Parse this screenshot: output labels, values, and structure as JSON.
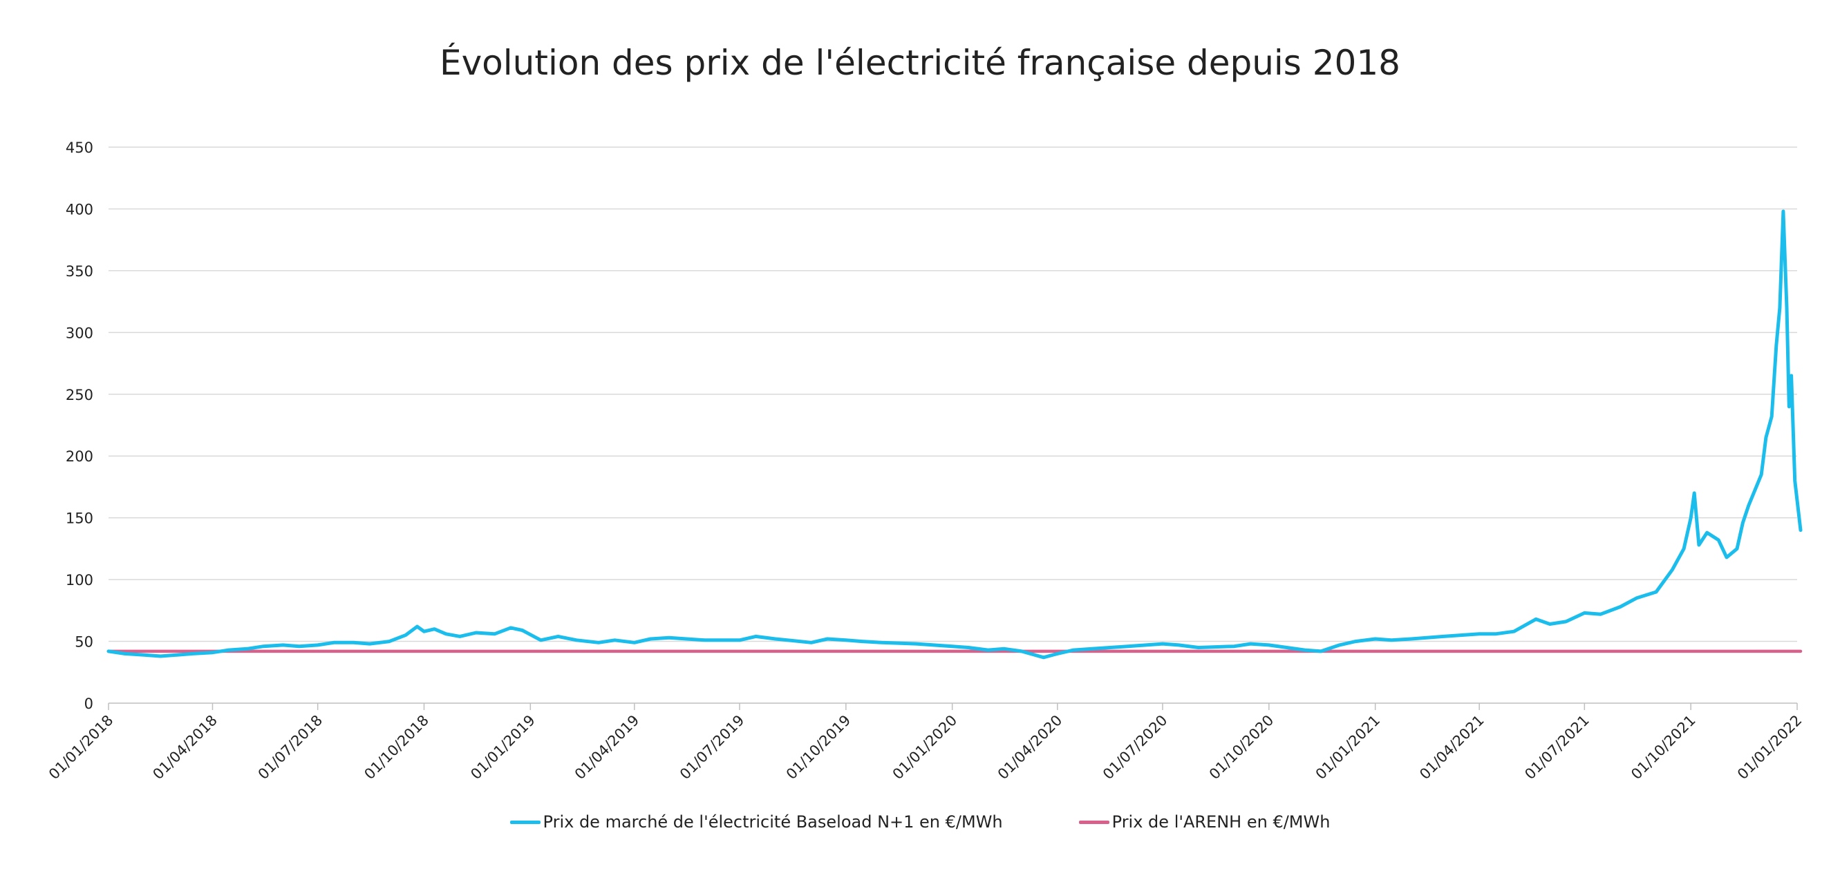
{
  "chart_data": {
    "type": "line",
    "title": "Évolution des prix de l'électricité française depuis 2018",
    "xlabel": "",
    "ylabel": "",
    "ylim": [
      0,
      450
    ],
    "y_ticks": [
      "0",
      "50",
      "100",
      "150",
      "200",
      "250",
      "300",
      "350",
      "400",
      "450"
    ],
    "xlim": [
      "01/01/2018",
      "01/01/2022"
    ],
    "x_ticks": [
      "01/01/2018",
      "01/04/2018",
      "01/07/2018",
      "01/10/2018",
      "01/01/2019",
      "01/04/2019",
      "01/07/2019",
      "01/10/2019",
      "01/01/2020",
      "01/04/2020",
      "01/07/2020",
      "01/10/2020",
      "01/01/2021",
      "01/04/2021",
      "01/07/2021",
      "01/10/2021",
      "01/01/2022"
    ],
    "grid": "horizontal",
    "legend_position": "bottom",
    "series": [
      {
        "name": "Prix de marché de l'électricité Baseload N+1 en €/MWh",
        "color": "#1ABDEB",
        "points": [
          [
            "01/01/2018",
            42
          ],
          [
            "15/01/2018",
            40
          ],
          [
            "01/02/2018",
            39
          ],
          [
            "15/02/2018",
            38
          ],
          [
            "01/03/2018",
            39
          ],
          [
            "15/03/2018",
            40
          ],
          [
            "01/04/2018",
            41
          ],
          [
            "15/04/2018",
            43
          ],
          [
            "01/05/2018",
            44
          ],
          [
            "15/05/2018",
            46
          ],
          [
            "01/06/2018",
            47
          ],
          [
            "15/06/2018",
            46
          ],
          [
            "01/07/2018",
            47
          ],
          [
            "15/07/2018",
            49
          ],
          [
            "01/08/2018",
            49
          ],
          [
            "15/08/2018",
            48
          ],
          [
            "01/09/2018",
            50
          ],
          [
            "15/09/2018",
            55
          ],
          [
            "25/09/2018",
            62
          ],
          [
            "01/10/2018",
            58
          ],
          [
            "10/10/2018",
            60
          ],
          [
            "20/10/2018",
            56
          ],
          [
            "01/11/2018",
            54
          ],
          [
            "15/11/2018",
            57
          ],
          [
            "01/12/2018",
            56
          ],
          [
            "15/12/2018",
            61
          ],
          [
            "25/12/2018",
            59
          ],
          [
            "10/01/2019",
            51
          ],
          [
            "25/01/2019",
            54
          ],
          [
            "10/02/2019",
            51
          ],
          [
            "01/03/2019",
            49
          ],
          [
            "15/03/2019",
            51
          ],
          [
            "01/04/2019",
            49
          ],
          [
            "15/04/2019",
            52
          ],
          [
            "01/05/2019",
            53
          ],
          [
            "01/06/2019",
            51
          ],
          [
            "01/07/2019",
            51
          ],
          [
            "15/07/2019",
            54
          ],
          [
            "01/08/2019",
            52
          ],
          [
            "01/09/2019",
            49
          ],
          [
            "15/09/2019",
            52
          ],
          [
            "01/10/2019",
            51
          ],
          [
            "15/10/2019",
            50
          ],
          [
            "01/11/2019",
            49
          ],
          [
            "01/12/2019",
            48
          ],
          [
            "01/01/2020",
            46
          ],
          [
            "15/01/2020",
            45
          ],
          [
            "01/02/2020",
            43
          ],
          [
            "15/02/2020",
            44
          ],
          [
            "01/03/2020",
            42
          ],
          [
            "20/03/2020",
            37
          ],
          [
            "01/04/2020",
            40
          ],
          [
            "15/04/2020",
            43
          ],
          [
            "01/05/2020",
            44
          ],
          [
            "01/06/2020",
            46
          ],
          [
            "01/07/2020",
            48
          ],
          [
            "15/07/2020",
            47
          ],
          [
            "01/08/2020",
            45
          ],
          [
            "01/09/2020",
            46
          ],
          [
            "15/09/2020",
            48
          ],
          [
            "01/10/2020",
            47
          ],
          [
            "01/11/2020",
            43
          ],
          [
            "15/11/2020",
            42
          ],
          [
            "01/12/2020",
            47
          ],
          [
            "15/12/2020",
            50
          ],
          [
            "01/01/2021",
            52
          ],
          [
            "15/01/2021",
            51
          ],
          [
            "01/02/2021",
            52
          ],
          [
            "01/03/2021",
            54
          ],
          [
            "01/04/2021",
            56
          ],
          [
            "15/04/2021",
            56
          ],
          [
            "01/05/2021",
            58
          ],
          [
            "20/05/2021",
            68
          ],
          [
            "01/06/2021",
            64
          ],
          [
            "15/06/2021",
            66
          ],
          [
            "01/07/2021",
            73
          ],
          [
            "15/07/2021",
            72
          ],
          [
            "01/08/2021",
            78
          ],
          [
            "15/08/2021",
            85
          ],
          [
            "01/09/2021",
            90
          ],
          [
            "15/09/2021",
            108
          ],
          [
            "25/09/2021",
            125
          ],
          [
            "01/10/2021",
            150
          ],
          [
            "04/10/2021",
            170
          ],
          [
            "08/10/2021",
            128
          ],
          [
            "15/10/2021",
            138
          ],
          [
            "25/10/2021",
            132
          ],
          [
            "01/11/2021",
            118
          ],
          [
            "10/11/2021",
            125
          ],
          [
            "15/11/2021",
            146
          ],
          [
            "20/11/2021",
            160
          ],
          [
            "01/12/2021",
            185
          ],
          [
            "05/12/2021",
            215
          ],
          [
            "10/12/2021",
            232
          ],
          [
            "14/12/2021",
            290
          ],
          [
            "17/12/2021",
            320
          ],
          [
            "20/12/2021",
            398
          ],
          [
            "23/12/2021",
            320
          ],
          [
            "25/12/2021",
            240
          ],
          [
            "27/12/2021",
            265
          ],
          [
            "30/12/2021",
            180
          ],
          [
            "04/01/2022",
            140
          ]
        ]
      },
      {
        "name": "Prix de l'ARENH en €/MWh",
        "color": "#D9608A",
        "points": [
          [
            "01/01/2018",
            42
          ],
          [
            "04/01/2022",
            42
          ]
        ]
      }
    ]
  }
}
